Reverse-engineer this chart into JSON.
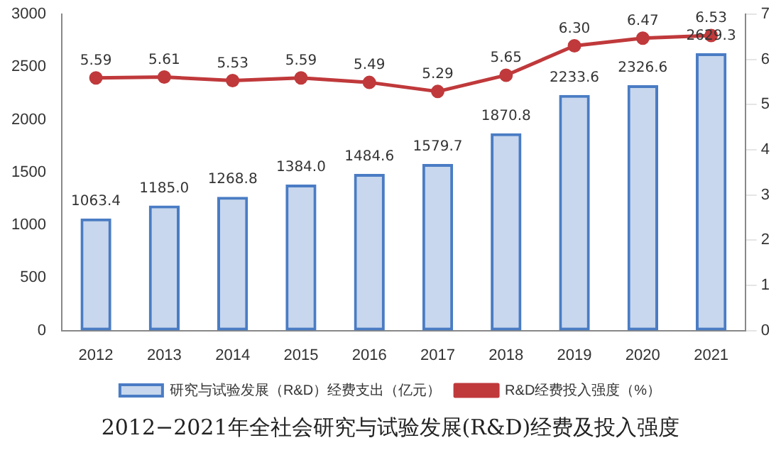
{
  "chart_data": {
    "type": "bar",
    "title": "2012−2021年全社会研究与试验发展(R&D)经费及投入强度",
    "categories": [
      "2012",
      "2013",
      "2014",
      "2015",
      "2016",
      "2017",
      "2018",
      "2019",
      "2020",
      "2021"
    ],
    "series": [
      {
        "name": "研究与试验发展（R&D）经费支出（亿元）",
        "color": "#4a7cc4",
        "values": [
          1063.4,
          1185.0,
          1268.8,
          1384.0,
          1484.6,
          1579.7,
          1870.8,
          2233.6,
          2326.6,
          2629.3
        ],
        "value_labels": [
          "1063.4",
          "1185.0",
          "1268.8",
          "1384.0",
          "1484.6",
          "1579.7",
          "1870.8",
          "2233.6",
          "2326.6",
          "2629.3"
        ]
      },
      {
        "name": "R&D经费投入强度（%）",
        "type": "line",
        "axis": "y2",
        "color": "#c0393b",
        "marker": "circle",
        "values": [
          5.59,
          5.61,
          5.53,
          5.59,
          5.49,
          5.29,
          5.65,
          6.3,
          6.47,
          6.53
        ],
        "value_labels": [
          "5.59",
          "5.61",
          "5.53",
          "5.59",
          "5.49",
          "5.29",
          "5.65",
          "6.30",
          "6.47",
          "6.53"
        ]
      }
    ],
    "ylim": [
      0,
      3000
    ],
    "yticks": [
      0,
      500,
      1000,
      1500,
      2000,
      2500,
      3000
    ],
    "y2lim": [
      0,
      7
    ],
    "y2ticks": [
      0,
      1,
      2,
      3,
      4,
      5,
      6,
      7
    ],
    "grid": false,
    "legend": "bottom"
  }
}
